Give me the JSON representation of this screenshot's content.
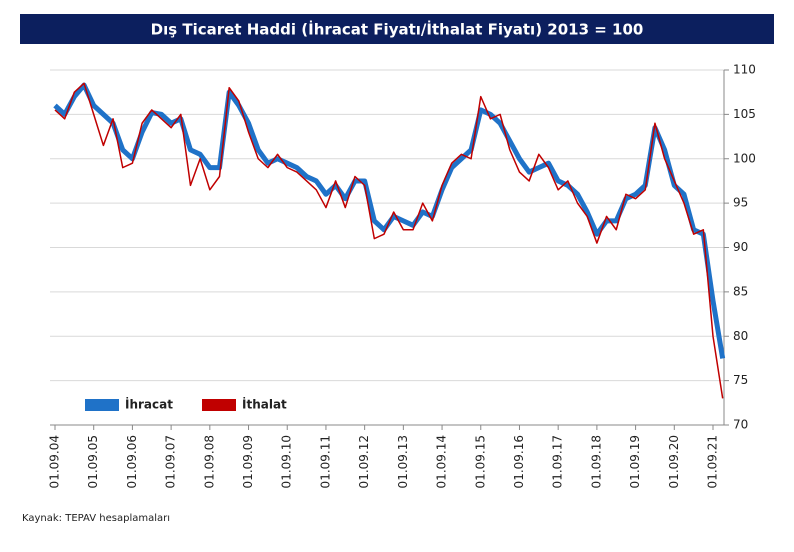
{
  "chart_data": {
    "type": "line",
    "title": "Dış Ticaret Haddi (İhracat Fiyatı/İthalat Fiyatı) 2013 = 100",
    "source": "Kaynak: TEPAV hesaplamaları",
    "categories": [
      "01.09.04",
      null,
      null,
      null,
      "01.09.05",
      null,
      null,
      null,
      "01.09.06",
      null,
      null,
      null,
      "01.09.07",
      null,
      null,
      null,
      "01.09.08",
      null,
      null,
      null,
      "01.09.09",
      null,
      null,
      null,
      "01.09.10",
      null,
      null,
      null,
      "01.09.11",
      null,
      null,
      null,
      "01.09.12",
      null,
      null,
      null,
      "01.09.13",
      null,
      null,
      null,
      "01.09.14",
      null,
      null,
      null,
      "01.09.15",
      null,
      null,
      null,
      "01.09.16",
      null,
      null,
      null,
      "01.09.17",
      null,
      null,
      null,
      "01.09.18",
      null,
      null,
      null,
      "01.09.19",
      null,
      null,
      null,
      "01.09.20",
      null,
      null,
      null,
      "01.09.21",
      null
    ],
    "series": [
      {
        "name": "İhracat",
        "color": "#1f72c8",
        "values": [
          106,
          105,
          107,
          108.3,
          106,
          105,
          104,
          101,
          100,
          103,
          105.2,
          105,
          104,
          104.5,
          101,
          100.5,
          99,
          99,
          107.5,
          106,
          104,
          101,
          99.5,
          100,
          99.5,
          99,
          98,
          97.5,
          96,
          97,
          95.5,
          97.5,
          97.5,
          93,
          92,
          93.5,
          93,
          92.5,
          94,
          93.5,
          96.5,
          99,
          100,
          101,
          105.5,
          105,
          104,
          102,
          100,
          98.5,
          99,
          99.5,
          97.5,
          97,
          96,
          94,
          91.5,
          93,
          93,
          95.5,
          96,
          97,
          103.5,
          101,
          97,
          96,
          92,
          91.5,
          84,
          77.5
        ]
      },
      {
        "name": "İthalat",
        "color": "#c00000",
        "values": [
          105.5,
          104.5,
          107.5,
          108.5,
          105,
          101.5,
          104.5,
          99,
          99.5,
          104,
          105.5,
          104.5,
          103.5,
          105,
          97,
          100,
          96.5,
          98,
          108,
          106.5,
          103,
          100,
          99,
          100.5,
          99,
          98.5,
          97.5,
          96.5,
          94.5,
          97.5,
          94.5,
          98,
          97,
          91,
          91.5,
          94,
          92,
          92,
          95,
          93,
          97,
          99.5,
          100.5,
          100,
          107,
          104.5,
          105,
          101,
          98.5,
          97.5,
          100.5,
          99,
          96.5,
          97.5,
          95,
          93.5,
          90.5,
          93.5,
          92,
          96,
          95.5,
          96.5,
          104,
          100,
          97.5,
          95,
          91.5,
          92,
          80,
          73
        ]
      }
    ],
    "ylim": [
      70,
      110
    ],
    "yticks": [
      70,
      75,
      80,
      85,
      90,
      95,
      100,
      105,
      110
    ],
    "grid": true,
    "y_axis_side": "right",
    "legend": "lower left"
  }
}
